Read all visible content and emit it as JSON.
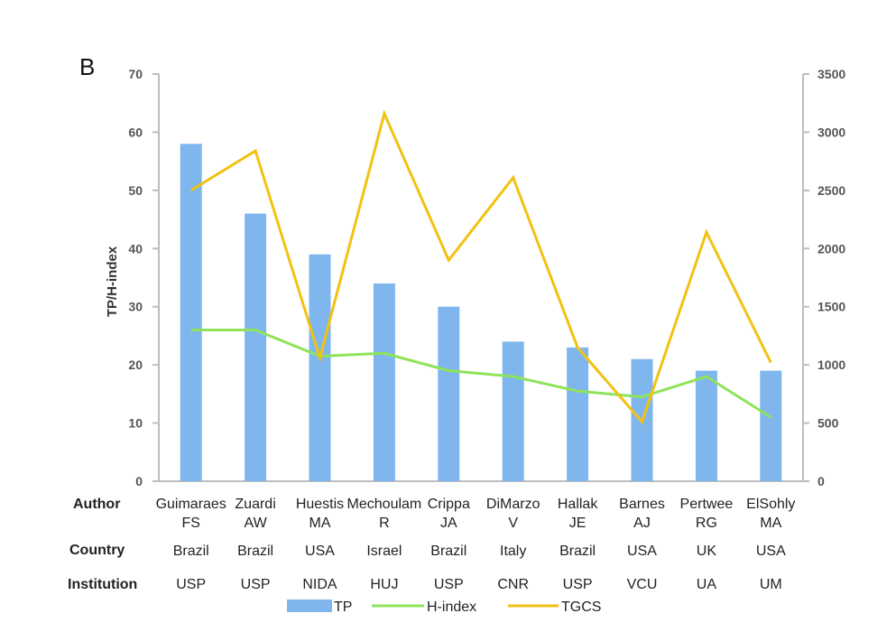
{
  "panel_label": "B",
  "table_rows": {
    "author_label": "Author",
    "country_label": "Country",
    "institution_label": "Institution"
  },
  "legend": {
    "items": [
      "TP",
      "H-index",
      "TGCS"
    ]
  },
  "colors": {
    "tp": "#7fb6ee",
    "h_index": "#8fe35a",
    "tgcs": "#f2c213",
    "axis": "#bdbdbd"
  },
  "chart_data": {
    "type": "bar",
    "categories": [
      {
        "author": [
          "Guimaraes",
          "FS"
        ],
        "country": "Brazil",
        "institution": "USP"
      },
      {
        "author": [
          "Zuardi",
          "AW"
        ],
        "country": "Brazil",
        "institution": "USP"
      },
      {
        "author": [
          "Huestis",
          "MA"
        ],
        "country": "USA",
        "institution": "NIDA"
      },
      {
        "author": [
          "Mechoulam",
          "R"
        ],
        "country": "Israel",
        "institution": "HUJ"
      },
      {
        "author": [
          "Crippa",
          "JA"
        ],
        "country": "Brazil",
        "institution": "USP"
      },
      {
        "author": [
          "DiMarzo",
          "V"
        ],
        "country": "Italy",
        "institution": "CNR"
      },
      {
        "author": [
          "Hallak",
          "JE"
        ],
        "country": "Brazil",
        "institution": "USP"
      },
      {
        "author": [
          "Barnes",
          "AJ"
        ],
        "country": "USA",
        "institution": "VCU"
      },
      {
        "author": [
          "Pertwee",
          "RG"
        ],
        "country": "UK",
        "institution": "UA"
      },
      {
        "author": [
          "ElSohly",
          "MA"
        ],
        "country": "USA",
        "institution": "UM"
      }
    ],
    "series": [
      {
        "name": "TP",
        "type": "bar",
        "axis": "left",
        "values": [
          58,
          46,
          39,
          34,
          30,
          24,
          23,
          21,
          19,
          19
        ]
      },
      {
        "name": "H-index",
        "type": "line",
        "axis": "left",
        "values": [
          26,
          26,
          21.5,
          22,
          19,
          18,
          15.5,
          14.5,
          18,
          11
        ]
      },
      {
        "name": "TGCS",
        "type": "line",
        "axis": "right",
        "values": [
          2500,
          2840,
          1060,
          3160,
          1900,
          2610,
          1150,
          510,
          2140,
          1020
        ]
      }
    ],
    "ylabel": "TP/H-index",
    "ylim": [
      0,
      70
    ],
    "yticks": [
      0,
      10,
      20,
      30,
      40,
      50,
      60,
      70
    ],
    "y2lim": [
      0,
      3500
    ],
    "y2ticks": [
      0,
      500,
      1000,
      1500,
      2000,
      2500,
      3000,
      3500
    ],
    "legend_position": "bottom",
    "grid": false
  }
}
